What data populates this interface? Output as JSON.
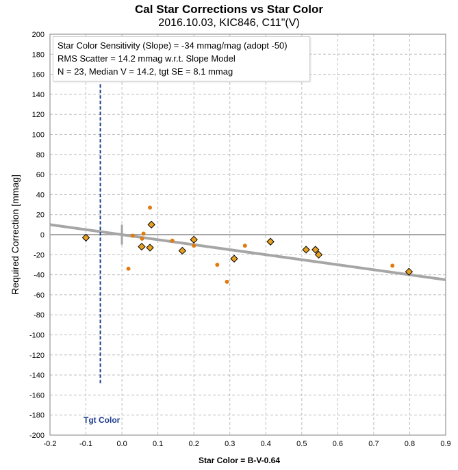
{
  "chart_data": {
    "type": "scatter",
    "title": "Cal Star Corrections vs Star Color",
    "subtitle": "2016.10.03, KIC846, C11\"(V)",
    "xlabel": "Star Color = B-V-0.64",
    "ylabel": "Required Correction [mmag]",
    "xlim": [
      -0.2,
      0.9
    ],
    "ylim": [
      -200,
      200
    ],
    "xticks": [
      "-0.2",
      "-0.1",
      "0.0",
      "0.1",
      "0.2",
      "0.3",
      "0.4",
      "0.5",
      "0.6",
      "0.7",
      "0.8",
      "0.9"
    ],
    "yticks": [
      "200",
      "180",
      "160",
      "140",
      "120",
      "100",
      "80",
      "60",
      "40",
      "20",
      "0",
      "-20",
      "-40",
      "-60",
      "-80",
      "-100",
      "-120",
      "-140",
      "-160",
      "-180",
      "-200"
    ],
    "grid": true,
    "annotation_lines": [
      "Star Color Sensitivity (Slope)  =  -34 mmag/mag (adopt -50)",
      "RMS Scatter = 14.2 mmag w.r.t. Slope Model",
      "N = 23,  Median V = 14.2, tgt SE = 8.1 mmag"
    ],
    "target_color_label": "Tgt Color",
    "target_color_x": -0.06,
    "target_color_line_y": [
      -150,
      150
    ],
    "slope_model": {
      "x": [
        -0.2,
        0.9
      ],
      "y": [
        10,
        -45
      ]
    },
    "series": [
      {
        "marker": "diamond",
        "color": "#e8a020",
        "points": [
          [
            -0.1,
            -3
          ],
          [
            0.055,
            -12
          ],
          [
            0.078,
            -13
          ],
          [
            0.082,
            10
          ],
          [
            0.168,
            -16
          ],
          [
            0.2,
            -5
          ],
          [
            0.312,
            -24
          ],
          [
            0.413,
            -7
          ],
          [
            0.512,
            -15
          ],
          [
            0.538,
            -15
          ],
          [
            0.547,
            -20
          ],
          [
            0.798,
            -37
          ]
        ]
      },
      {
        "marker": "dot",
        "color": "#e07b10",
        "points": [
          [
            0.018,
            -34
          ],
          [
            0.03,
            -1
          ],
          [
            0.056,
            -4
          ],
          [
            0.06,
            1
          ],
          [
            0.078,
            27
          ],
          [
            0.14,
            -6
          ],
          [
            0.2,
            -11
          ],
          [
            0.265,
            -30
          ],
          [
            0.292,
            -47
          ],
          [
            0.342,
            -11
          ],
          [
            0.752,
            -31
          ]
        ]
      }
    ]
  }
}
